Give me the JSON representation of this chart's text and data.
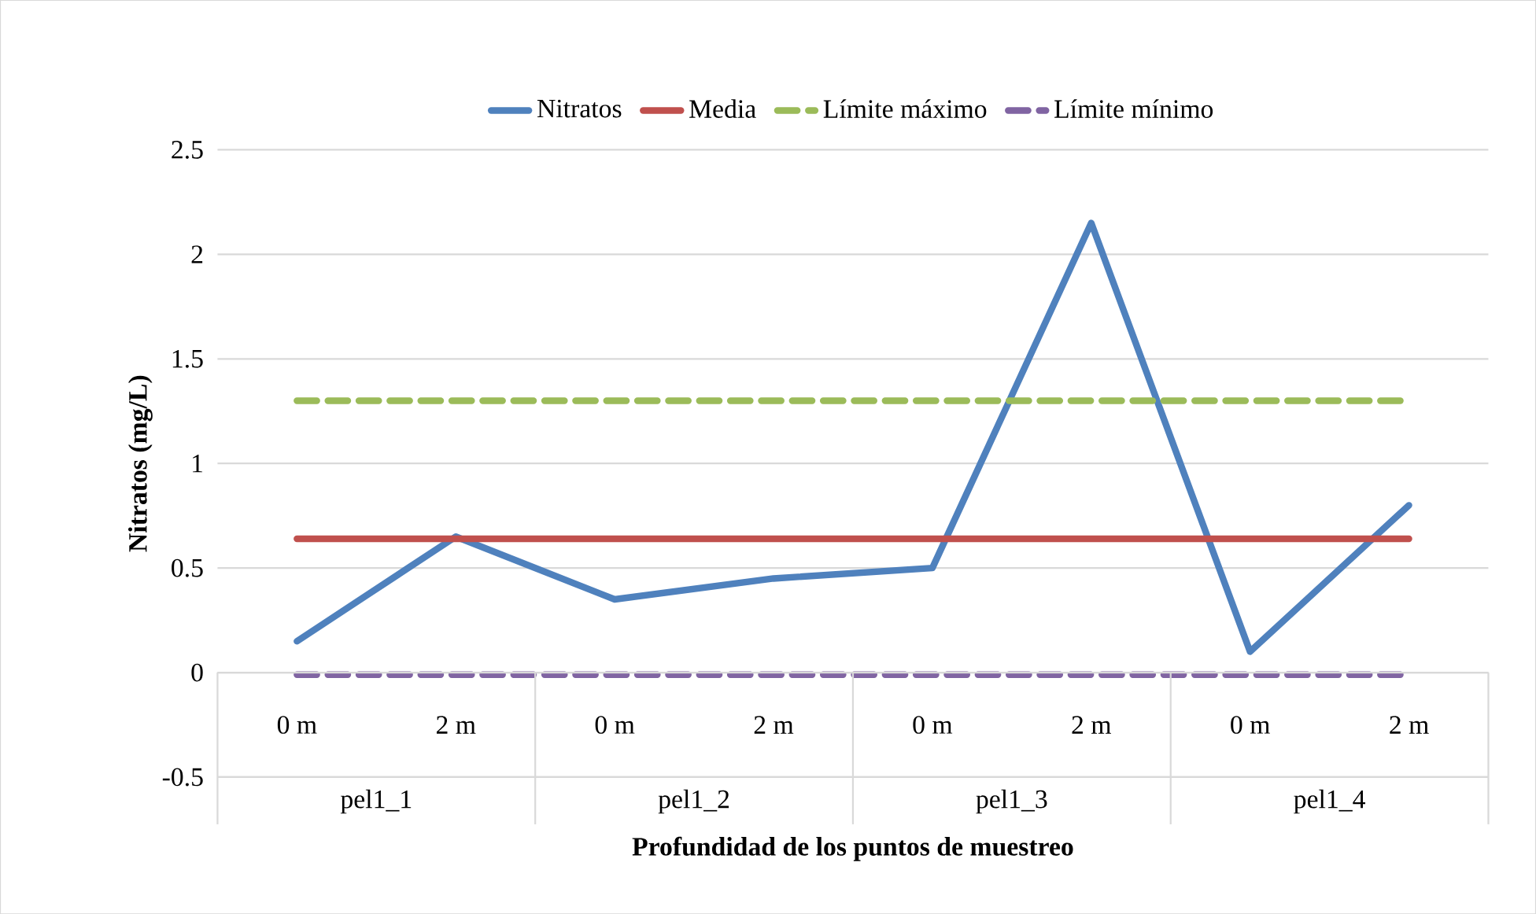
{
  "chart_data": {
    "type": "line",
    "xlabel": "Profundidad de los puntos de muestreo",
    "ylabel": "Nitratos (mg/L)",
    "categories": [
      "0 m",
      "2 m",
      "0 m",
      "2 m",
      "0 m",
      "2 m",
      "0 m",
      "2 m"
    ],
    "annotations": [
      "pel1_1",
      "pel1_2",
      "pel1_3",
      "pel1_4"
    ],
    "series": [
      {
        "name": "Nitratos",
        "color": "#4f81bd",
        "line_style": "solid",
        "values": [
          0.15,
          0.65,
          0.35,
          0.45,
          0.5,
          2.15,
          0.1,
          0.8
        ]
      },
      {
        "name": "Media",
        "color": "#c0504d",
        "line_style": "solid",
        "values": [
          0.64,
          0.64,
          0.64,
          0.64,
          0.64,
          0.64,
          0.64,
          0.64
        ]
      },
      {
        "name": "Límite máximo",
        "color": "#9bbb59",
        "line_style": "dashed",
        "values": [
          1.3,
          1.3,
          1.3,
          1.3,
          1.3,
          1.3,
          1.3,
          1.3
        ]
      },
      {
        "name": "Límite mínimo",
        "color": "#8064a2",
        "line_style": "dashed",
        "values": [
          -0.01,
          -0.01,
          -0.01,
          -0.01,
          -0.01,
          -0.01,
          -0.01,
          -0.01
        ]
      }
    ],
    "ylim": [
      -0.5,
      2.5
    ],
    "yticks": [
      -0.5,
      0,
      0.5,
      1,
      1.5,
      2,
      2.5
    ],
    "grid": "y",
    "legend": "top",
    "marker": "none"
  }
}
